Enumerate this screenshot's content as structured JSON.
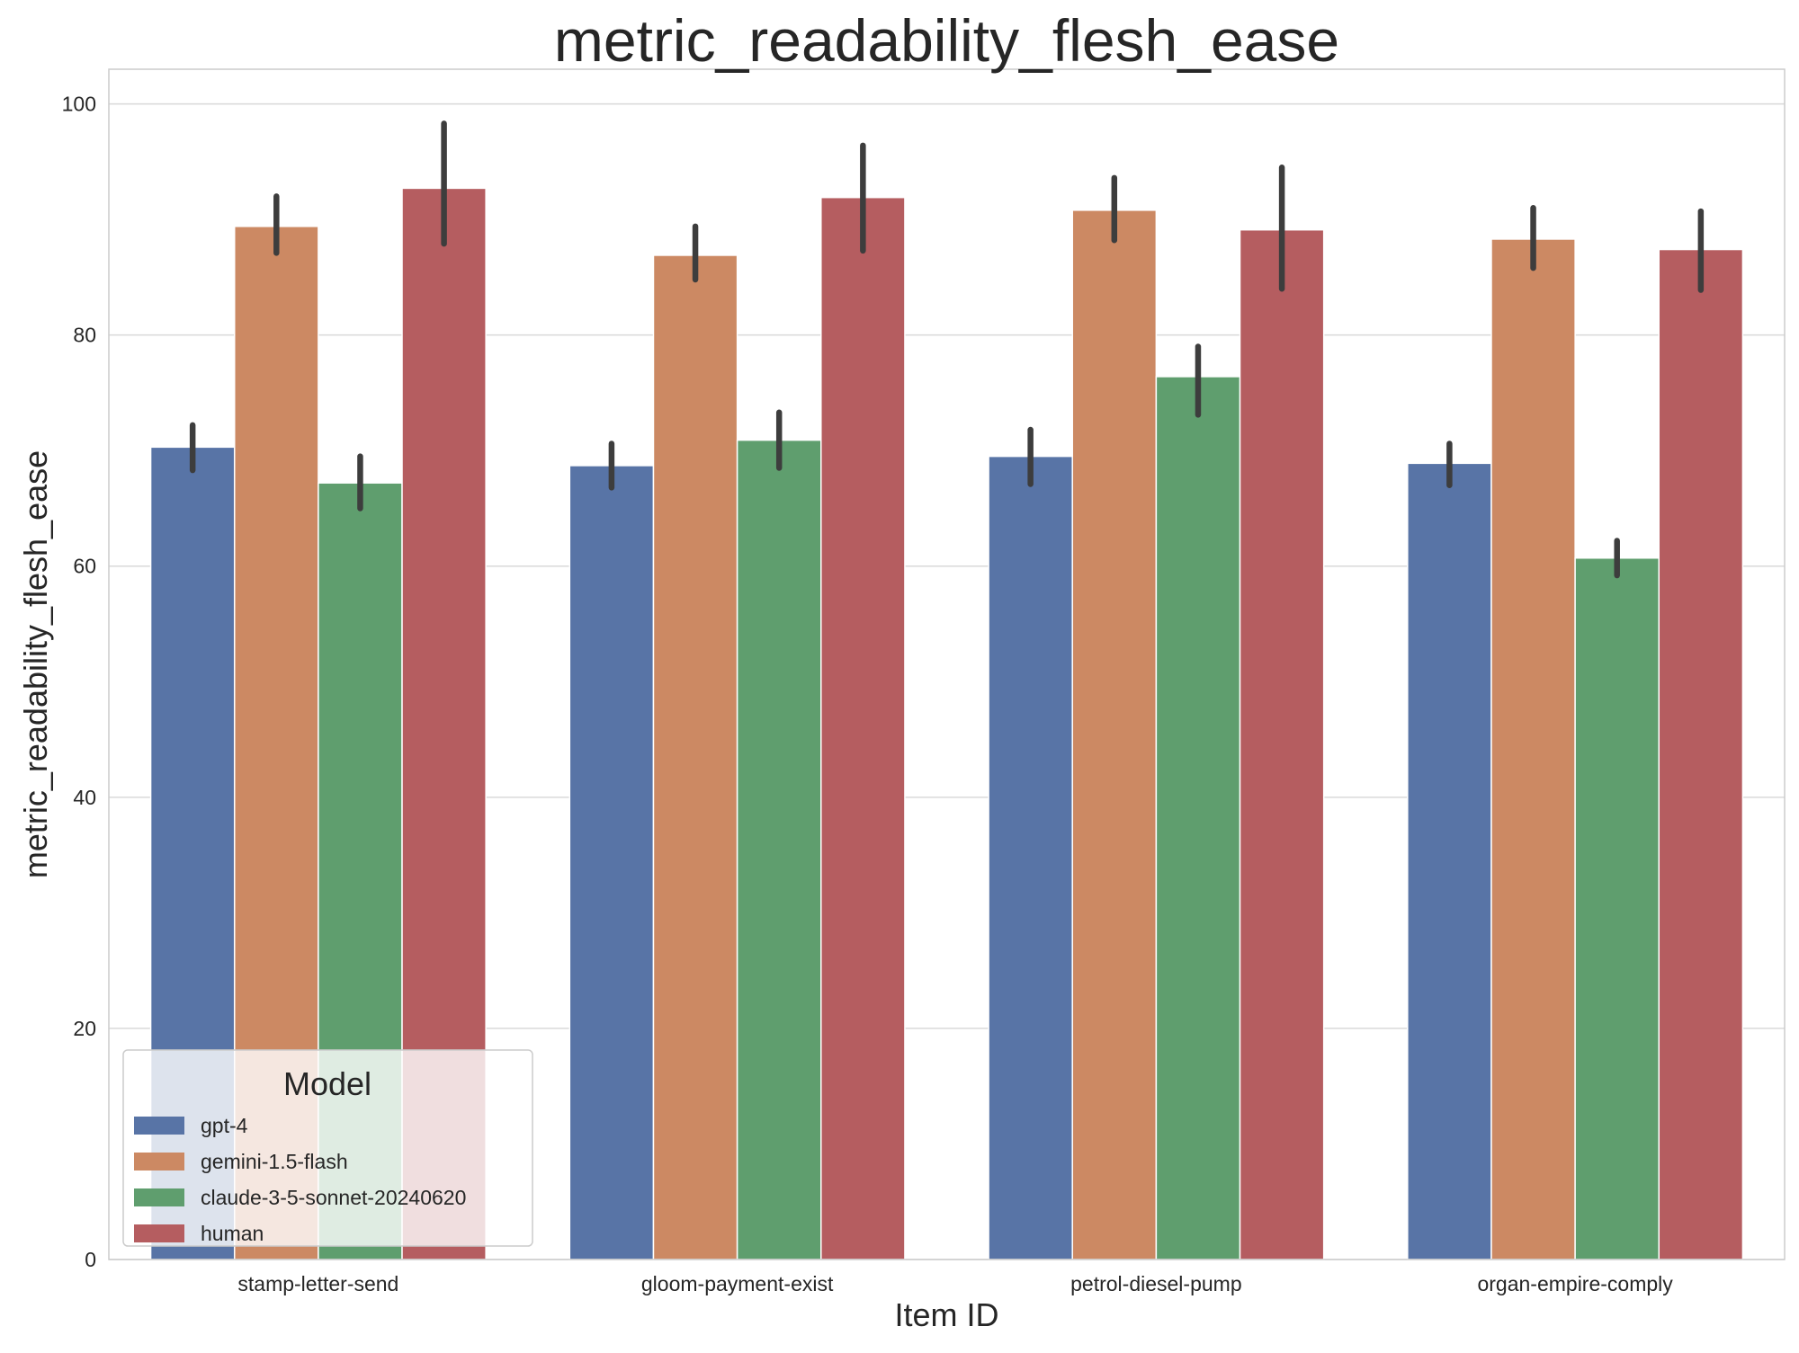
{
  "chart_data": {
    "type": "bar",
    "title": "metric_readability_flesh_ease",
    "xlabel": "Item ID",
    "ylabel": "metric_readability_flesh_ease",
    "categories": [
      "stamp-letter-send",
      "gloom-payment-exist",
      "petrol-diesel-pump",
      "organ-empire-comply"
    ],
    "ylim": [
      0,
      103
    ],
    "yticks": [
      0,
      20,
      40,
      60,
      80,
      100
    ],
    "grid": true,
    "legend": {
      "title": "Model",
      "placement": "lower-left"
    },
    "series": [
      {
        "name": "gpt-4",
        "color": "#5874a6",
        "values": [
          70.3,
          68.7,
          69.5,
          68.9
        ],
        "ci_low": [
          68.3,
          66.8,
          67.1,
          67.0
        ],
        "ci_high": [
          72.2,
          70.6,
          71.8,
          70.6
        ]
      },
      {
        "name": "gemini-1.5-flash",
        "color": "#cc8963",
        "values": [
          89.4,
          86.9,
          90.8,
          88.3
        ],
        "ci_low": [
          87.1,
          84.8,
          88.2,
          85.8
        ],
        "ci_high": [
          92.0,
          89.4,
          93.6,
          91.0
        ]
      },
      {
        "name": "claude-3-5-sonnet-20240620",
        "color": "#5f9e6e",
        "values": [
          67.2,
          70.9,
          76.4,
          60.7
        ],
        "ci_low": [
          65.0,
          68.5,
          73.1,
          59.2
        ],
        "ci_high": [
          69.5,
          73.3,
          79.0,
          62.2
        ]
      },
      {
        "name": "human",
        "color": "#b55d60",
        "values": [
          92.7,
          91.9,
          89.1,
          87.4
        ],
        "ci_low": [
          87.9,
          87.3,
          84.0,
          83.9
        ],
        "ci_high": [
          98.3,
          96.4,
          94.5,
          90.7
        ]
      }
    ]
  }
}
